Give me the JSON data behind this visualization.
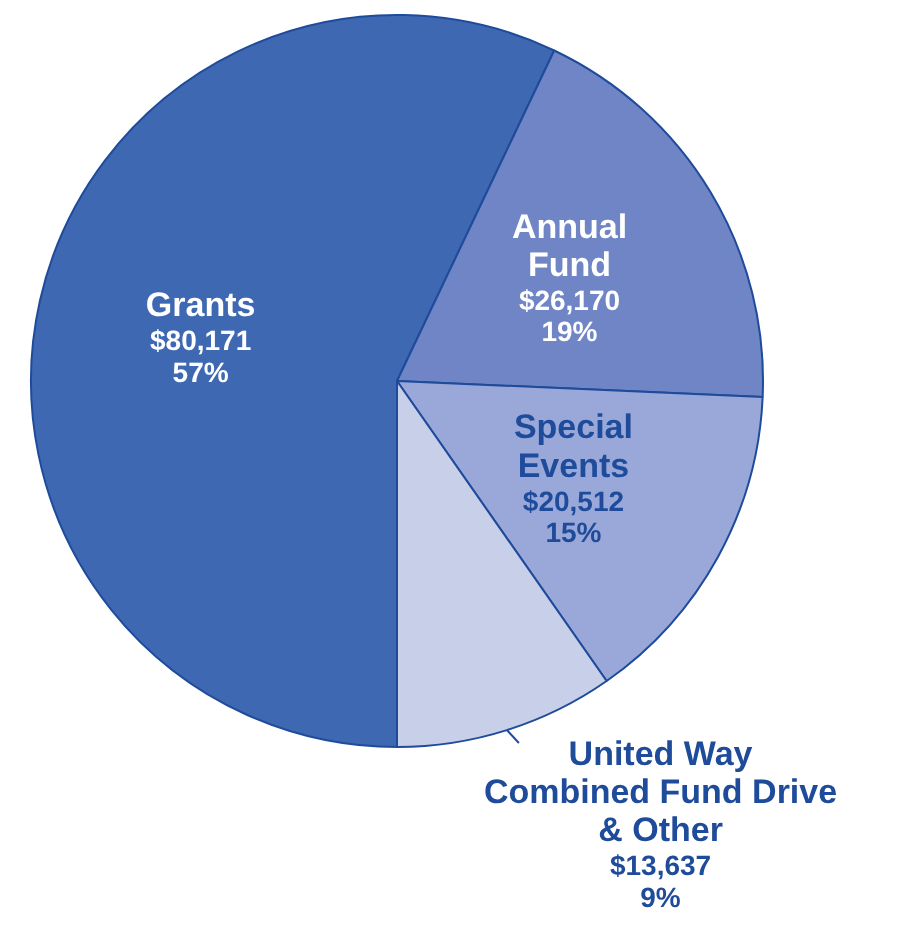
{
  "chart_data": {
    "type": "pie",
    "categories": [
      "Grants",
      "Annual\nFund",
      "Special\nEvents",
      "United Way\nCombined Fund Drive\n& Other"
    ],
    "values": [
      80171,
      26170,
      20512,
      13637
    ],
    "value_labels": [
      "$80,171\n57%",
      "$26,170\n19%",
      "$20,512\n15%",
      "$13,637\n9%"
    ],
    "colors": [
      "#3e68b2",
      "#6f85c5",
      "#99a8d8",
      "#c8cfe9"
    ]
  }
}
